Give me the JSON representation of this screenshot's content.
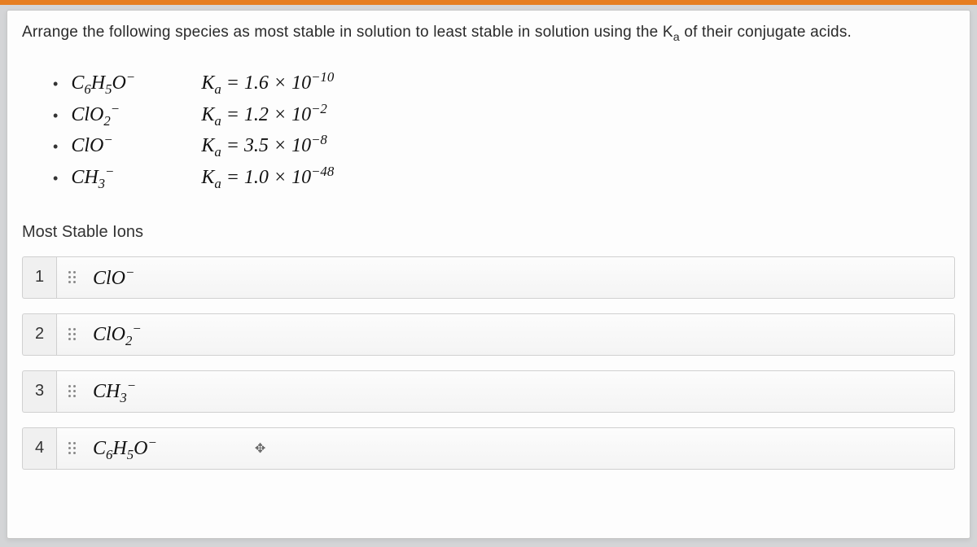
{
  "prompt": {
    "text_before": "Arrange the following species as most stable in solution to least stable in solution using the K",
    "sub": "a",
    "text_after": " of their conjugate acids."
  },
  "species": [
    {
      "formula_html": "C<sub>6</sub>H<sub>5</sub>O<sup>−</sup>",
      "ka_html": "K<sub>a</sub> = 1.6 × 10<sup>−10</sup>"
    },
    {
      "formula_html": "ClO<sub>2</sub><sup>−</sup>",
      "ka_html": "K<sub>a</sub> = 1.2 × 10<sup>−2</sup>"
    },
    {
      "formula_html": "ClO<sup>−</sup>",
      "ka_html": "K<sub>a</sub> = 3.5 × 10<sup>−8</sup>"
    },
    {
      "formula_html": "CH<sub>3</sub><sup>−</sup>",
      "ka_html": "K<sub>a</sub> = 1.0 × 10<sup>−48</sup>"
    }
  ],
  "section_label": "Most Stable Ions",
  "ranking": [
    {
      "num": "1",
      "formula_html": "ClO<sup>−</sup>",
      "show_move": false
    },
    {
      "num": "2",
      "formula_html": "ClO<sub>2</sub><sup>−</sup>",
      "show_move": false
    },
    {
      "num": "3",
      "formula_html": "CH<sub>3</sub><sup>−</sup>",
      "show_move": false
    },
    {
      "num": "4",
      "formula_html": "C<sub>6</sub>H<sub>5</sub>O<sup>−</sup>",
      "show_move": true
    }
  ],
  "colors": {
    "accent": "#e67e22",
    "page_bg": "#d4d5d7",
    "card_bg": "#fdfdfd",
    "border": "#d0d0d0"
  }
}
